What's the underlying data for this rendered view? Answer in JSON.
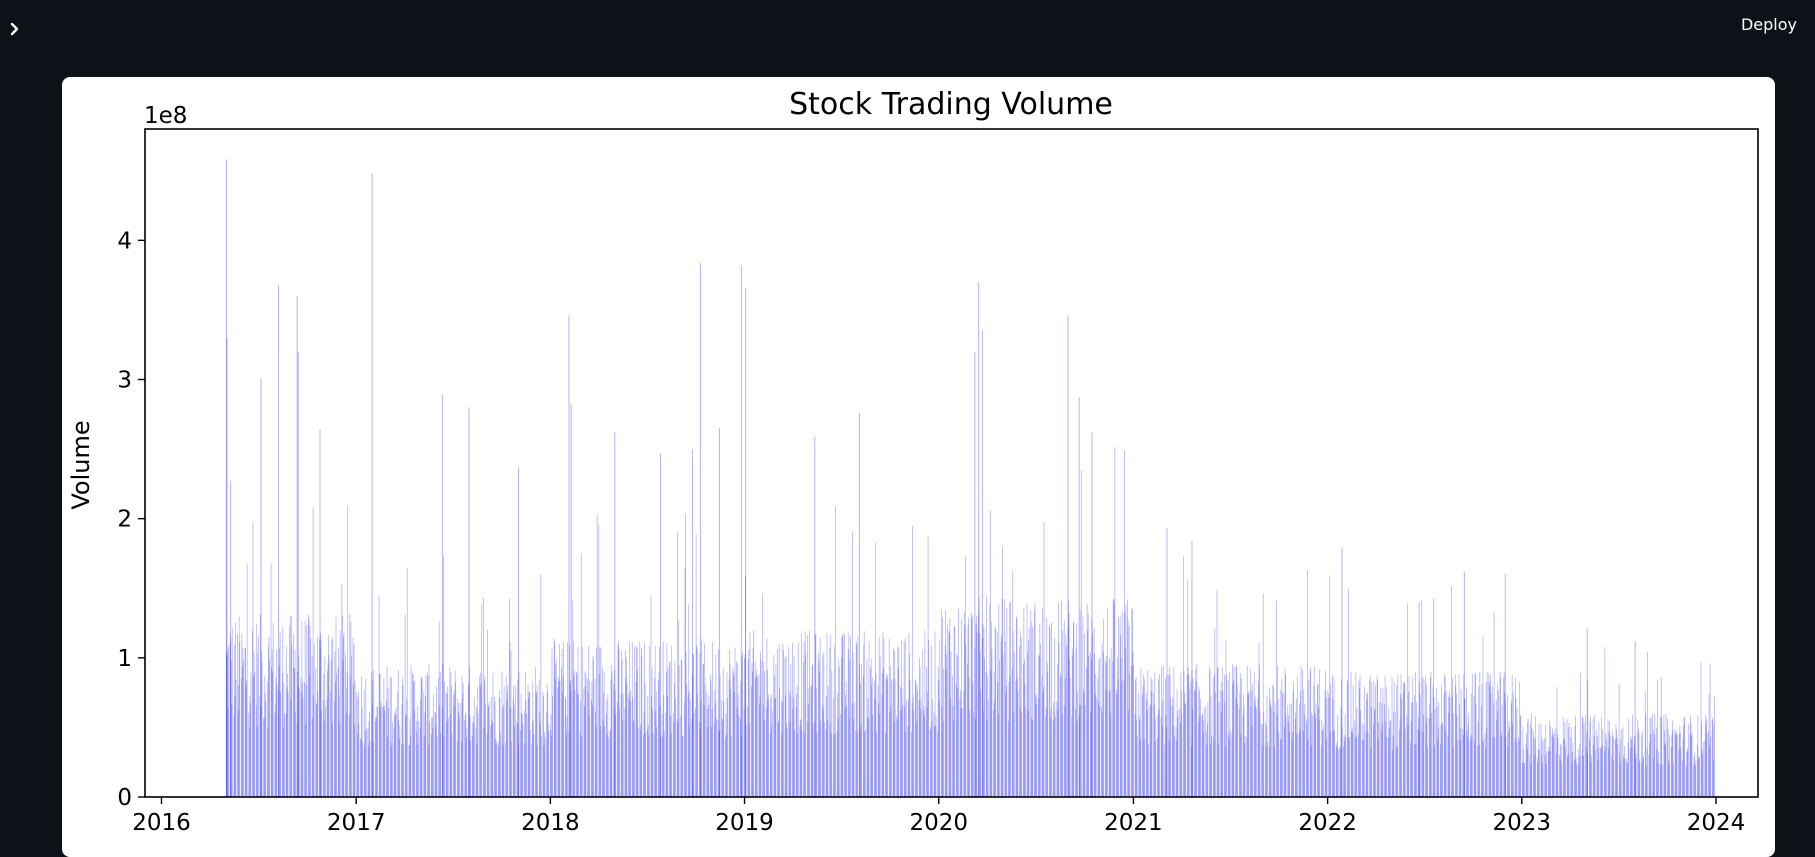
{
  "header": {
    "deploy_label": "Deploy",
    "sidebar_toggle_icon": "chevron-right-icon"
  },
  "colors": {
    "app_background": "#0e1117",
    "card_background": "#ffffff",
    "bar_color": "#0000ff"
  },
  "chart_data": {
    "type": "bar",
    "title": "Stock Trading Volume",
    "xlabel": "",
    "ylabel": "Volume",
    "y_multiplier_label": "1e8",
    "xlim": [
      "2015-12-01",
      "2024-03-20"
    ],
    "ylim": [
      0,
      480000000
    ],
    "x_ticks": [
      "2016",
      "2017",
      "2018",
      "2019",
      "2020",
      "2021",
      "2022",
      "2023",
      "2024"
    ],
    "y_ticks": [
      "0",
      "1",
      "2",
      "3",
      "4"
    ],
    "grid": false,
    "legend": "none",
    "bar_opacity": 0.3,
    "data_range": [
      "2016-05-01",
      "2023-12-31"
    ],
    "series": [
      {
        "values_note": "Daily volume bars (sampled approximation of visible peaks)",
        "peaks": [
          {
            "x": "2016-05-02",
            "y": 458000000
          },
          {
            "x": "2016-05-03",
            "y": 330000000
          },
          {
            "x": "2016-05-10",
            "y": 227000000
          },
          {
            "x": "2016-07-06",
            "y": 301000000
          },
          {
            "x": "2016-08-08",
            "y": 368000000
          },
          {
            "x": "2016-09-12",
            "y": 360000000
          },
          {
            "x": "2016-09-14",
            "y": 320000000
          },
          {
            "x": "2016-10-25",
            "y": 264000000
          },
          {
            "x": "2017-01-31",
            "y": 448000000
          },
          {
            "x": "2017-06-12",
            "y": 289000000
          },
          {
            "x": "2017-08-01",
            "y": 280000000
          },
          {
            "x": "2017-11-02",
            "y": 237000000
          },
          {
            "x": "2018-02-05",
            "y": 346000000
          },
          {
            "x": "2018-02-09",
            "y": 282000000
          },
          {
            "x": "2018-05-02",
            "y": 262000000
          },
          {
            "x": "2018-07-27",
            "y": 247000000
          },
          {
            "x": "2018-09-25",
            "y": 250000000
          },
          {
            "x": "2018-10-10",
            "y": 384000000
          },
          {
            "x": "2018-11-15",
            "y": 265000000
          },
          {
            "x": "2018-12-26",
            "y": 382000000
          },
          {
            "x": "2019-01-03",
            "y": 366000000
          },
          {
            "x": "2019-05-13",
            "y": 259000000
          },
          {
            "x": "2019-08-05",
            "y": 276000000
          },
          {
            "x": "2020-03-09",
            "y": 320000000
          },
          {
            "x": "2020-03-16",
            "y": 370000000
          },
          {
            "x": "2020-03-23",
            "y": 335000000
          },
          {
            "x": "2020-08-31",
            "y": 346000000
          },
          {
            "x": "2020-09-21",
            "y": 287000000
          },
          {
            "x": "2020-10-15",
            "y": 262000000
          },
          {
            "x": "2021-03-05",
            "y": 193000000
          },
          {
            "x": "2021-04-21",
            "y": 184000000
          },
          {
            "x": "2022-01-28",
            "y": 179000000
          },
          {
            "x": "2022-06-22",
            "y": 140000000
          },
          {
            "x": "2022-09-15",
            "y": 162000000
          },
          {
            "x": "2022-12-01",
            "y": 160000000
          },
          {
            "x": "2023-05-04",
            "y": 121000000
          },
          {
            "x": "2023-08-02",
            "y": 112000000
          }
        ],
        "baseline_by_year": [
          {
            "year": "2016",
            "y": 110000000
          },
          {
            "year": "2017",
            "y": 80000000
          },
          {
            "year": "2018",
            "y": 95000000
          },
          {
            "year": "2019",
            "y": 100000000
          },
          {
            "year": "2020",
            "y": 120000000
          },
          {
            "year": "2021",
            "y": 80000000
          },
          {
            "year": "2022",
            "y": 75000000
          },
          {
            "year": "2023",
            "y": 50000000
          }
        ]
      }
    ]
  }
}
